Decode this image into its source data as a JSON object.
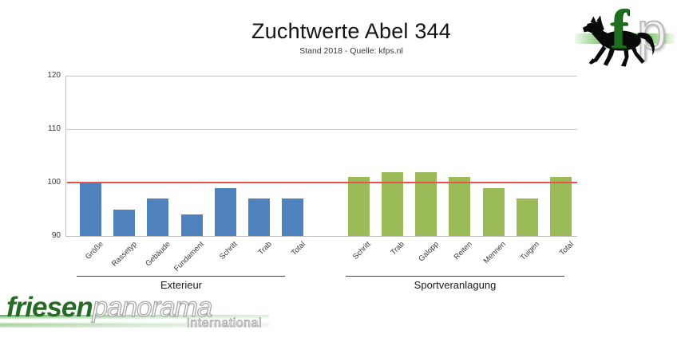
{
  "header": {
    "title": "Zuchtwerte Abel 344",
    "subtitle": "Stand 2018 - Quelle: kfps.nl"
  },
  "brand_logo": {
    "letter_f": "f",
    "letter_p": "p"
  },
  "footer_logo": {
    "name_part1": "friesen",
    "name_part2": "panorama",
    "tagline": "International"
  },
  "colors": {
    "bar_blue": "#4F81BD",
    "bar_green": "#9BBB59",
    "reference_red": "#E8514D",
    "gridline": "#C9C9C9"
  },
  "chart_data": {
    "type": "bar",
    "title": "Zuchtwerte Abel 344",
    "subtitle": "Stand 2018 - Quelle: kfps.nl",
    "ylim": [
      90,
      120
    ],
    "yticks": [
      90,
      100,
      110,
      120
    ],
    "grid": true,
    "legend": false,
    "reference_line": {
      "value": 100,
      "color": "#E8514D"
    },
    "groups": [
      {
        "name": "Exterieur",
        "color": "#4F81BD",
        "categories": [
          "Größe",
          "Rassetyp",
          "Gebäude",
          "Fundament",
          "Schritt",
          "Trab",
          "Total"
        ],
        "values": [
          100,
          95,
          97,
          94,
          99,
          97,
          97
        ]
      },
      {
        "name": "Sportveranlagung",
        "color": "#9BBB59",
        "categories": [
          "Schritt",
          "Trab",
          "Galopp",
          "Reiten",
          "Mennen",
          "Tuigen",
          "Total"
        ],
        "values": [
          101,
          102,
          102,
          101,
          99,
          97,
          101
        ]
      }
    ]
  }
}
